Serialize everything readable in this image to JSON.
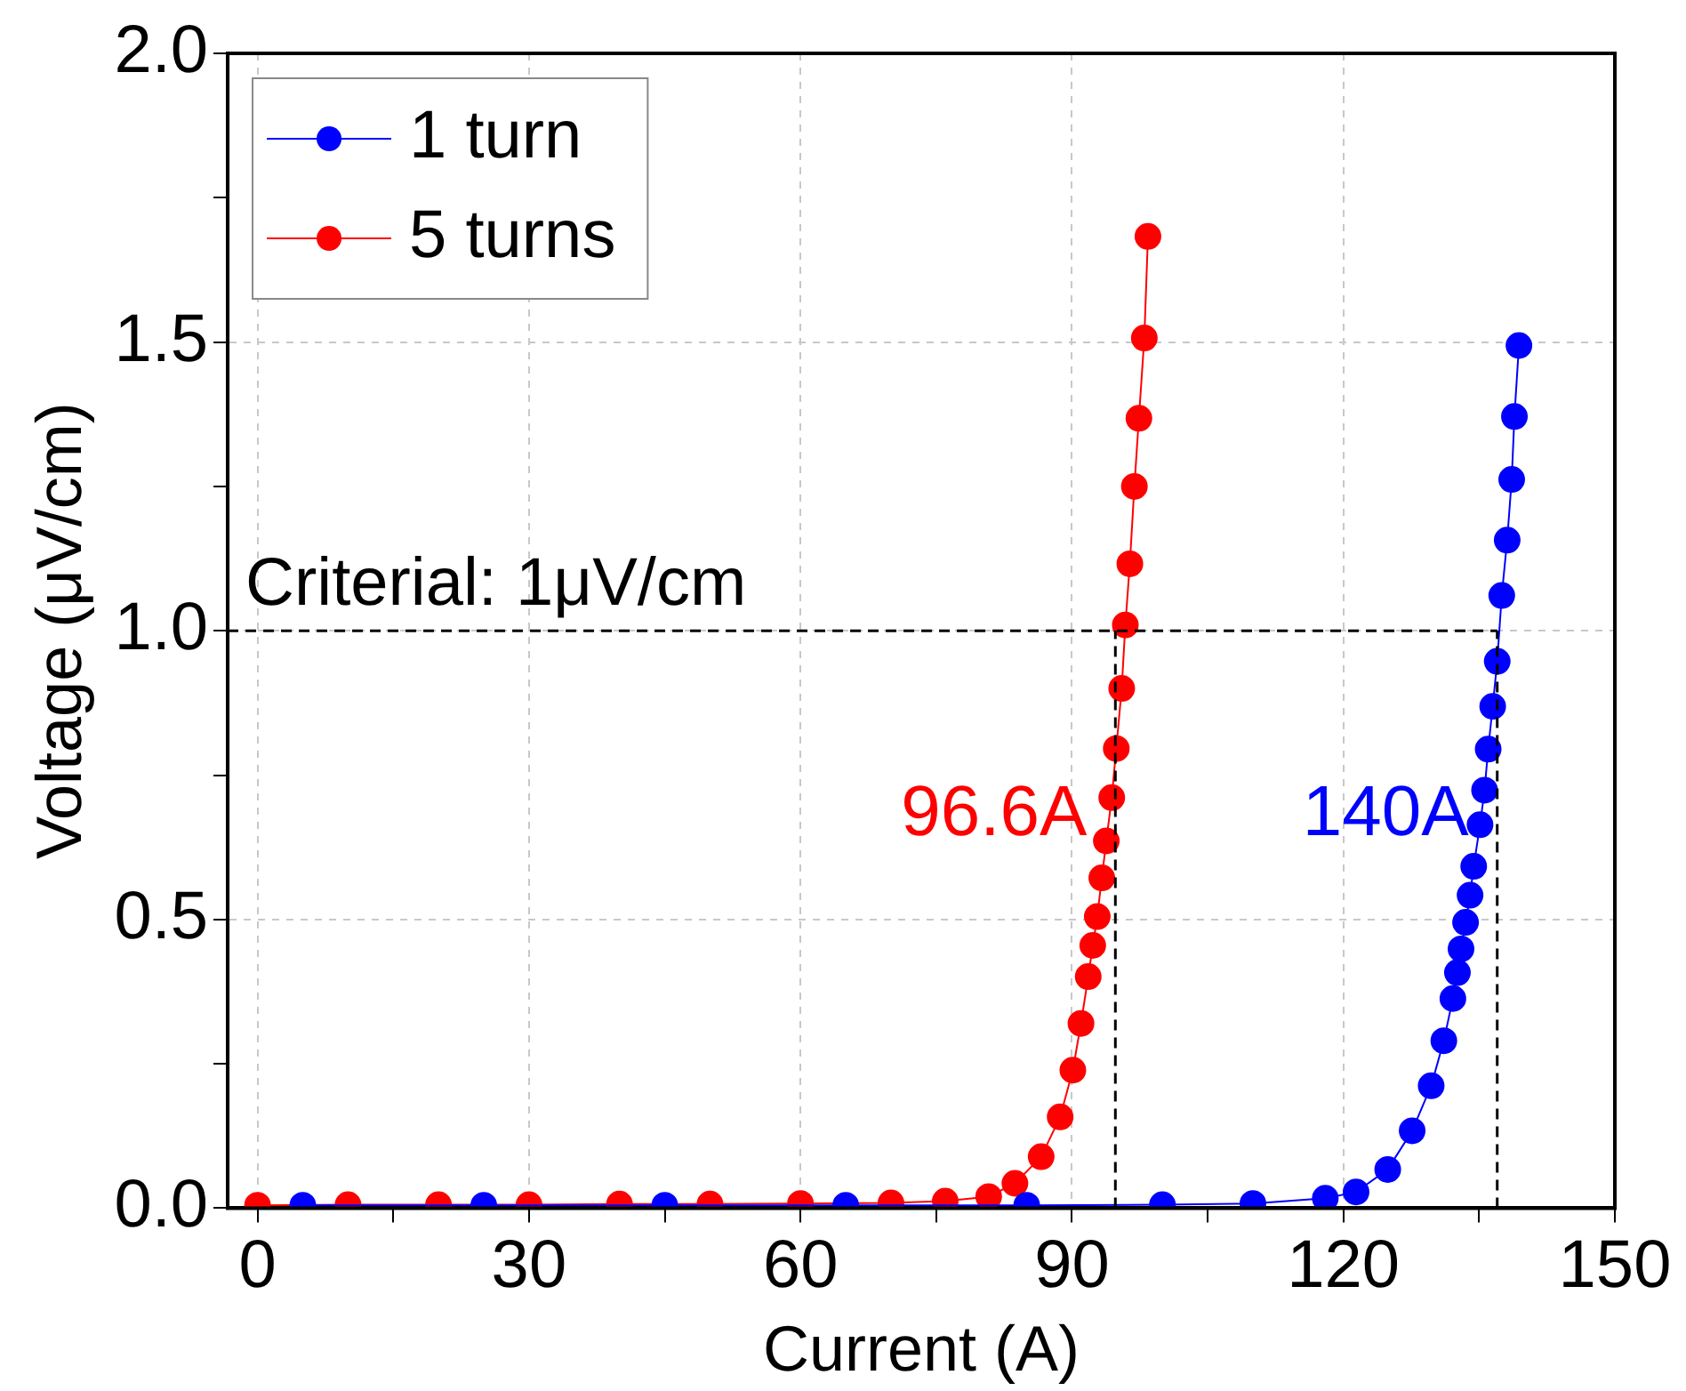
{
  "chart_data": {
    "type": "line",
    "xlabel": "Current (A)",
    "ylabel": "Voltage (μV/cm)",
    "xlim": [
      -3.3,
      150
    ],
    "xticks": [
      0,
      {
        "value": 15,
        "label": null
      },
      30,
      {
        "value": 45,
        "label": null
      },
      60,
      {
        "value": 75,
        "label": null
      },
      90,
      {
        "value": 105,
        "label": null
      },
      120,
      {
        "value": 135,
        "label": null
      },
      150
    ],
    "ylim": [
      0,
      2
    ],
    "yticks": [
      {
        "value": 0,
        "label": "0.0"
      },
      {
        "value": 0.25,
        "label": null
      },
      {
        "value": 0.5,
        "label": "0.5"
      },
      {
        "value": 0.75,
        "label": null
      },
      {
        "value": 1,
        "label": "1.0"
      },
      {
        "value": 1.25,
        "label": null
      },
      {
        "value": 1.5,
        "label": "1.5"
      },
      {
        "value": 1.75,
        "label": null
      },
      {
        "value": 2,
        "label": "2.0"
      }
    ],
    "grid": true,
    "legend": "top left",
    "marker": "circle",
    "line_style": "solid",
    "series": [
      {
        "name": "1 turn",
        "color": "#0000ff",
        "x": [
          5,
          25,
          45,
          65,
          85,
          100,
          110,
          118,
          121.4,
          124.9,
          127.6,
          129.7,
          131.1,
          132.1,
          132.6,
          133.0,
          133.5,
          134.0,
          134.4,
          135.1,
          135.6,
          136.0,
          136.5,
          137.0,
          137.5,
          138.1,
          138.6,
          138.9,
          139.4
        ],
        "values": [
          0.005,
          0.005,
          0.005,
          0.005,
          0.005,
          0.006,
          0.008,
          0.017,
          0.028,
          0.067,
          0.134,
          0.212,
          0.29,
          0.363,
          0.408,
          0.449,
          0.495,
          0.542,
          0.592,
          0.664,
          0.724,
          0.795,
          0.869,
          0.947,
          1.061,
          1.157,
          1.262,
          1.371,
          1.494
        ]
      },
      {
        "name": "5 turns",
        "color": "#ff0000",
        "x": [
          0,
          10,
          20,
          30,
          40,
          50,
          60,
          70,
          76,
          80.8,
          83.7,
          86.6,
          88.7,
          90.1,
          91.0,
          91.8,
          92.3,
          92.8,
          93.3,
          93.8,
          94.4,
          94.9,
          95.5,
          95.9,
          96.4,
          96.9,
          97.4,
          98.0,
          98.4
        ],
        "values": [
          0.005,
          0.006,
          0.006,
          0.006,
          0.007,
          0.007,
          0.008,
          0.009,
          0.012,
          0.02,
          0.043,
          0.089,
          0.158,
          0.239,
          0.32,
          0.401,
          0.455,
          0.505,
          0.572,
          0.636,
          0.711,
          0.796,
          0.9,
          1.01,
          1.116,
          1.25,
          1.368,
          1.507,
          1.683
        ]
      }
    ],
    "ref_lines": [
      {
        "axis": "y",
        "value": 1,
        "label": "Criterial: 1μV/cm",
        "color": "#000000",
        "line_style": "dashed"
      },
      {
        "axis": "x",
        "value": 94.8,
        "label": "96.6A",
        "color": "#000000",
        "line_style": "dashed"
      },
      {
        "axis": "x",
        "value": 137,
        "label": "140A",
        "color": "#000000",
        "line_style": "dashed"
      }
    ]
  }
}
